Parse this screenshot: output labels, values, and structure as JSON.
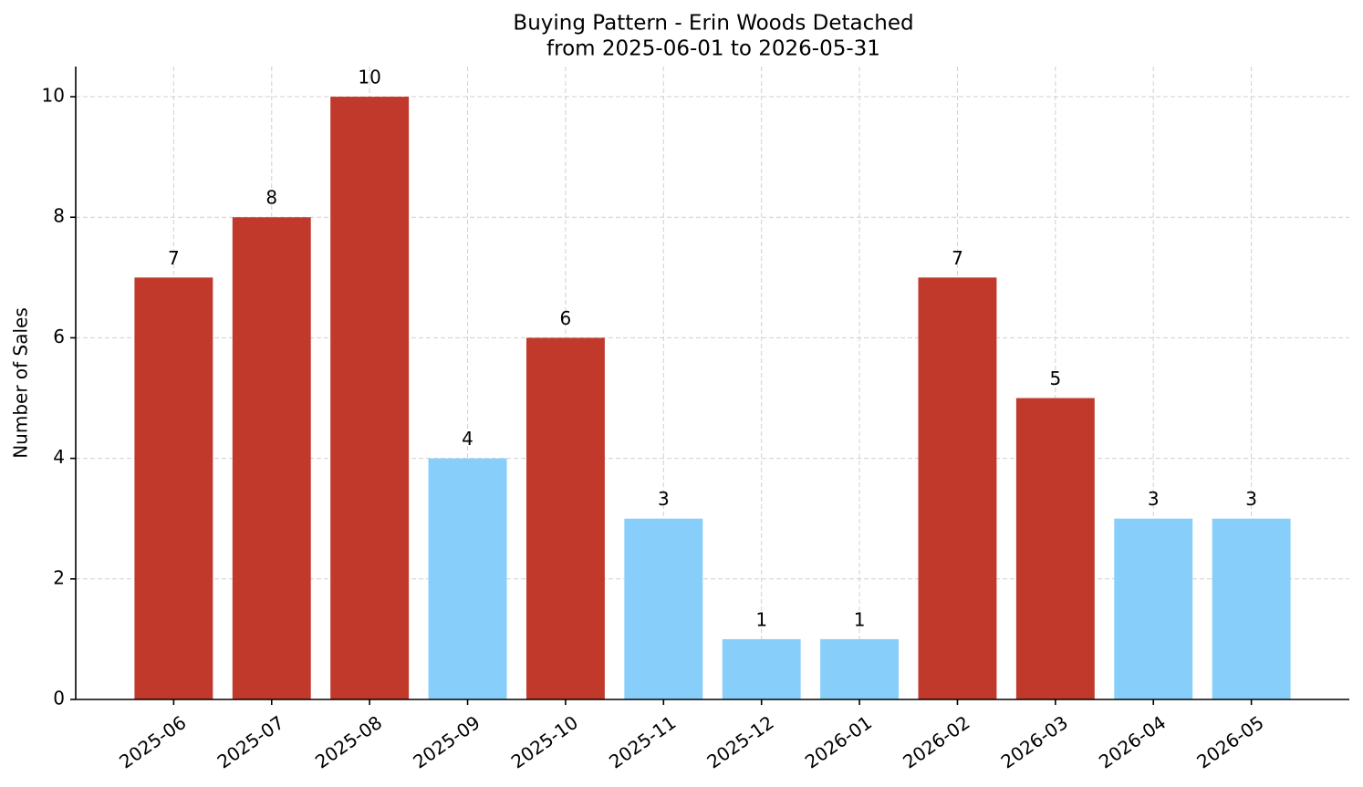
{
  "chart_data": {
    "type": "bar",
    "title": "Buying Pattern - Erin Woods Detached",
    "subtitle": "from 2025-06-01 to 2026-05-31",
    "y_label": "Number of Sales",
    "categories": [
      "2025-06",
      "2025-07",
      "2025-08",
      "2025-09",
      "2025-10",
      "2025-11",
      "2025-12",
      "2026-01",
      "2026-02",
      "2026-03",
      "2026-04",
      "2026-05"
    ],
    "values": [
      7,
      8,
      10,
      4,
      6,
      3,
      1,
      1,
      7,
      5,
      3,
      3
    ],
    "colors": [
      "#c0392b",
      "#c0392b",
      "#c0392b",
      "#87cefa",
      "#c0392b",
      "#87cefa",
      "#87cefa",
      "#87cefa",
      "#c0392b",
      "#c0392b",
      "#87cefa",
      "#87cefa"
    ],
    "ylim": [
      0,
      10.5
    ],
    "yticks": [
      0,
      2,
      4,
      6,
      8,
      10
    ],
    "grid": true
  }
}
